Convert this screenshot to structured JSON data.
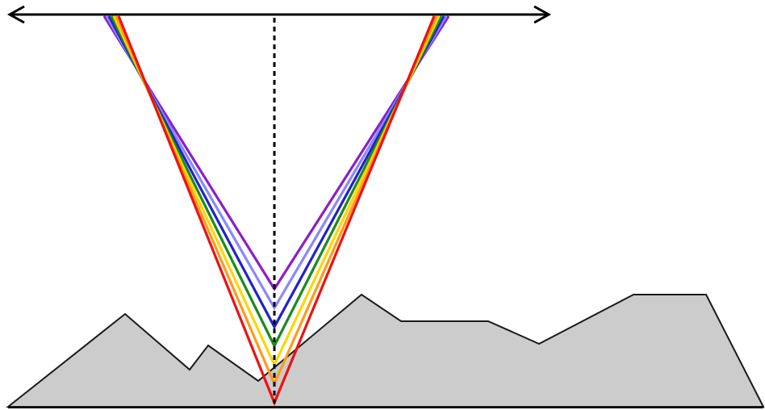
{
  "colors": {
    "background": "#ffffff",
    "outline": "#000000",
    "terrain_fill": "#cccccc",
    "terrain_stroke": "#1a1a1a"
  },
  "icons": {
    "axis_arrow": "double-headed-arrow-icon"
  },
  "rays": [
    {
      "color": "#8b1fc8"
    },
    {
      "color": "#8888ff"
    },
    {
      "color": "#1f22cc"
    },
    {
      "color": "#1b8a1b"
    },
    {
      "color": "#ffd500"
    },
    {
      "color": "#ff9b1a"
    },
    {
      "color": "#ee1111"
    }
  ]
}
